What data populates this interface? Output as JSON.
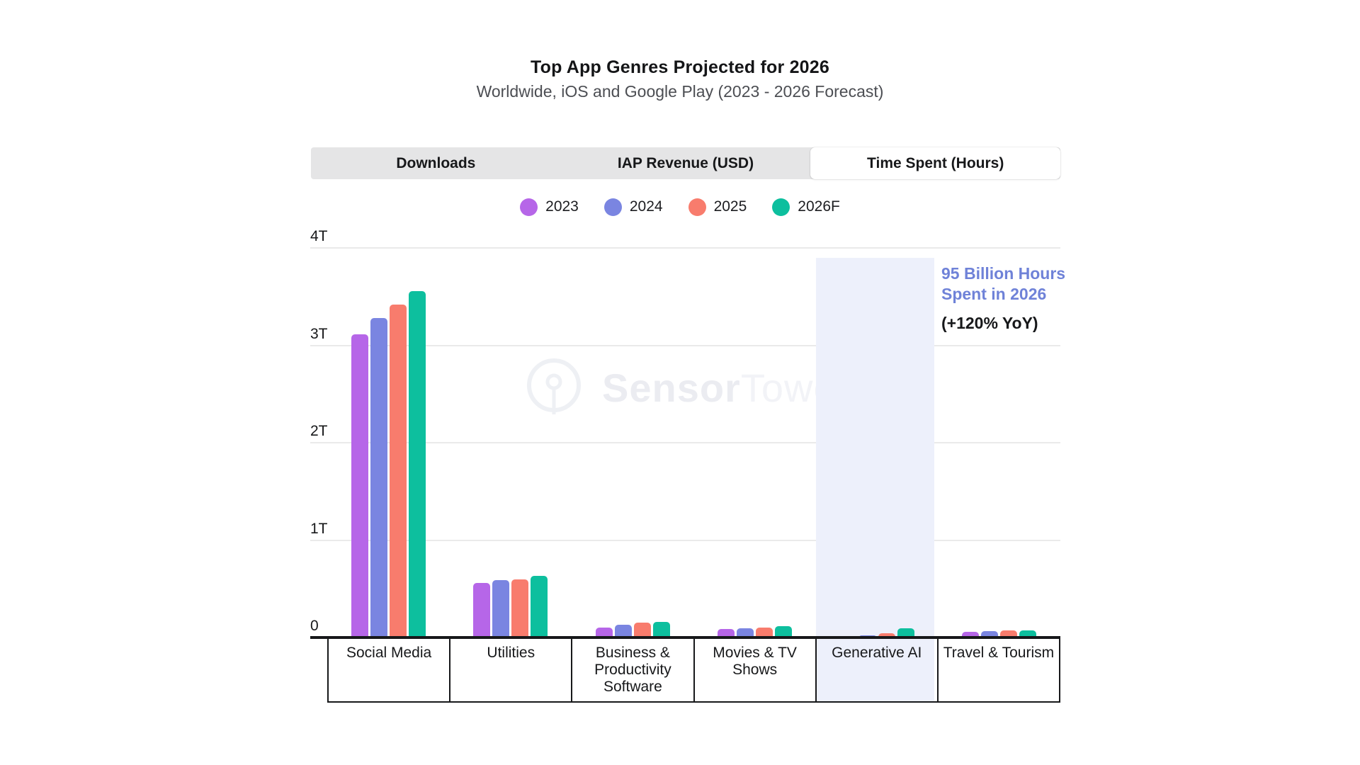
{
  "header": {
    "title": "Top App Genres Projected for 2026",
    "subtitle": "Worldwide, iOS and Google Play (2023 - 2026 Forecast)"
  },
  "tabs": [
    {
      "label": "Downloads",
      "active": false
    },
    {
      "label": "IAP Revenue (USD)",
      "active": false
    },
    {
      "label": "Time Spent (Hours)",
      "active": true
    }
  ],
  "annotation": {
    "line1": "95 Billion Hours",
    "line2": "Spent in 2026",
    "line3": "(+120% YoY)"
  },
  "watermark": {
    "brand_part1": "Sensor",
    "brand_part2": "Tower",
    "logo": "sensor-tower-antenna-logo"
  },
  "colors": {
    "series_2023": "#b666e8",
    "series_2024": "#7a85e1",
    "series_2025": "#f87c6d",
    "series_2026F": "#0dbf9e",
    "highlight_band": "#edf0fb",
    "annotation_blue": "#6f82d8",
    "tab_bar_gray": "#e5e5e6",
    "axis_black": "#17181a",
    "gridline_gray": "#eaeaea"
  },
  "chart_data": {
    "type": "bar",
    "title": "Top App Genres Projected for 2026",
    "subtitle": "Worldwide, iOS and Google Play (2023 - 2026 Forecast)",
    "active_metric": "Time Spent (Hours)",
    "unit": "hours, T = trillions",
    "categories": [
      "Social Media",
      "Utilities",
      "Business & Productivity Software",
      "Movies & TV Shows",
      "Generative AI",
      "Travel & Tourism"
    ],
    "x_tick_lines": [
      "Social Media",
      "Utilities",
      "Business &\nProductivity\nSoftware",
      "Movies & TV\nShows",
      "Generative AI",
      "Travel & Tourism"
    ],
    "series": [
      {
        "name": "2023",
        "color": "#b666e8",
        "values": [
          3.11,
          0.56,
          0.1,
          0.09,
          0.01,
          0.06
        ]
      },
      {
        "name": "2024",
        "color": "#7a85e1",
        "values": [
          3.28,
          0.59,
          0.13,
          0.095,
          0.02,
          0.065
        ]
      },
      {
        "name": "2025",
        "color": "#f87c6d",
        "values": [
          3.42,
          0.6,
          0.15,
          0.1,
          0.043,
          0.07
        ]
      },
      {
        "name": "2026F",
        "color": "#0dbf9e",
        "values": [
          3.56,
          0.63,
          0.16,
          0.12,
          0.095,
          0.075
        ]
      }
    ],
    "y_ticks": [
      {
        "label": "4T",
        "value": 4
      },
      {
        "label": "3T",
        "value": 3
      },
      {
        "label": "2T",
        "value": 2
      },
      {
        "label": "1T",
        "value": 1
      },
      {
        "label": "0",
        "value": 0
      }
    ],
    "ylim": [
      0,
      4
    ],
    "grid": true,
    "legend_position": "top-center",
    "highlighted_category": "Generative AI",
    "highlighted_annotation": "95 Billion Hours Spent in 2026 (+120% YoY)"
  }
}
